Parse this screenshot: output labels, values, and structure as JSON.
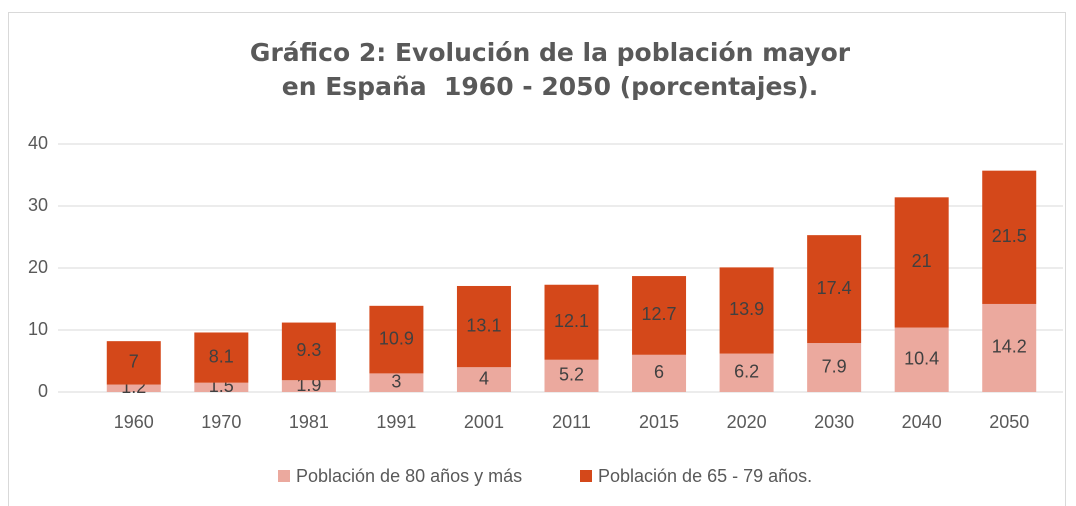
{
  "chart_data": {
    "type": "stacked_bar",
    "title": "Gráfico 2: Evolución de la población mayor en España  1960 - 2050 (porcentajes).",
    "categories": [
      "1960",
      "1970",
      "1981",
      "1991",
      "2001",
      "2011",
      "2015",
      "2020",
      "2030",
      "2040",
      "2050"
    ],
    "series": [
      {
        "name": "Población de 80 años y más",
        "color": "#eba99e",
        "values": [
          1.2,
          1.5,
          1.9,
          3,
          4,
          5.2,
          6,
          6.2,
          7.9,
          10.4,
          14.2
        ]
      },
      {
        "name": "Población de 65 - 79 años.",
        "color": "#d4481a",
        "values": [
          7,
          8.1,
          9.3,
          10.9,
          13.1,
          12.1,
          12.7,
          13.9,
          17.4,
          21,
          21.5
        ]
      }
    ],
    "ylim": [
      0,
      40
    ],
    "yticks": [
      0,
      10,
      20,
      30,
      40
    ],
    "grid": true,
    "legend": "bottom"
  }
}
